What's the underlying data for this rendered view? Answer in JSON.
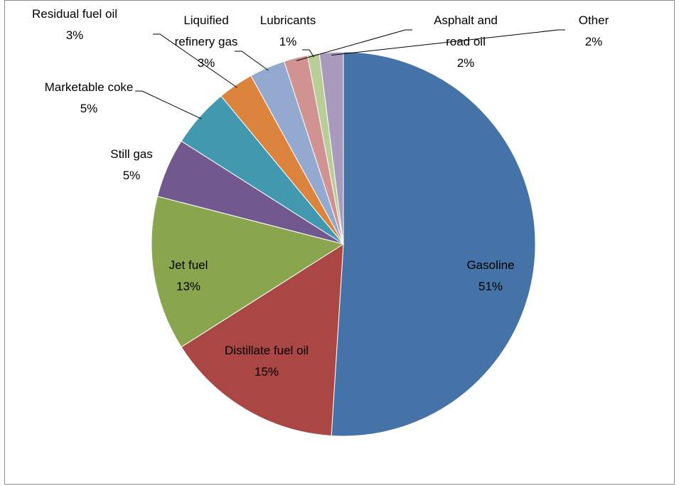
{
  "chart_data": {
    "type": "pie",
    "categories": [
      "Gasoline",
      "Distillate fuel oil",
      "Jet fuel",
      "Still gas",
      "Marketable coke",
      "Residual fuel oil",
      "Liquified refinery gas",
      "Asphalt and road oil",
      "Lubricants",
      "Other"
    ],
    "values": [
      51,
      15,
      13,
      5,
      5,
      3,
      3,
      2,
      1,
      2
    ],
    "value_labels": [
      "51%",
      "15%",
      "13%",
      "5%",
      "5%",
      "3%",
      "3%",
      "2%",
      "1%",
      "2%"
    ],
    "colors": [
      "#4572a7",
      "#aa4643",
      "#89a54e",
      "#71588f",
      "#4198af",
      "#db843d",
      "#93a9cf",
      "#d19392",
      "#b9cd96",
      "#a99bbd"
    ]
  }
}
